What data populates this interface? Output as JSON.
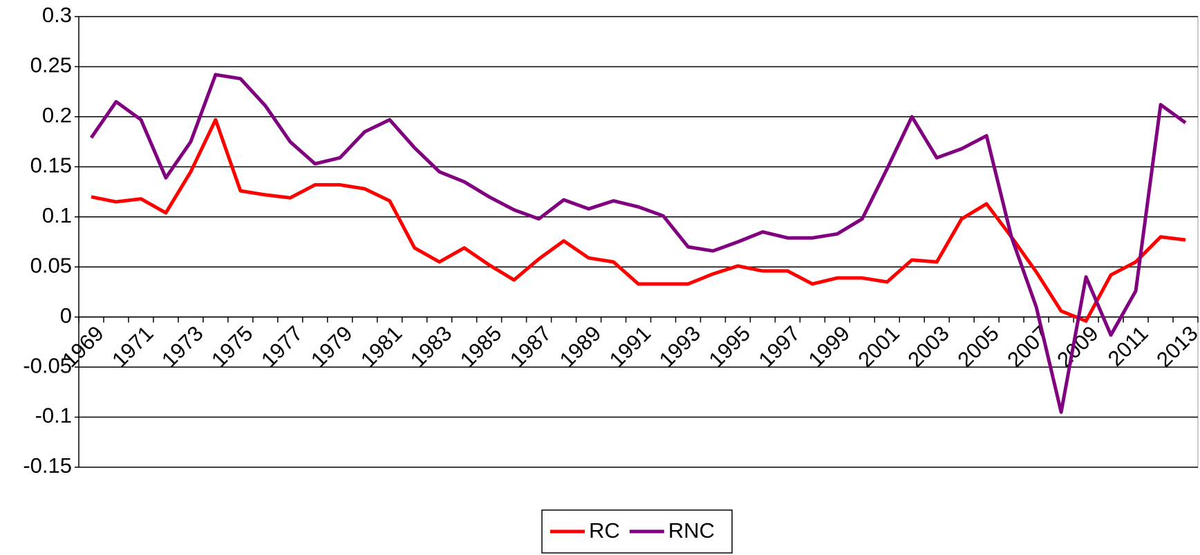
{
  "chart_data": {
    "type": "line",
    "categories": [
      "1969",
      null,
      "1971",
      null,
      "1973",
      null,
      "1975",
      null,
      "1977",
      null,
      "1979",
      null,
      "1981",
      null,
      "1983",
      null,
      "1985",
      null,
      "1987",
      null,
      "1989",
      null,
      "1991",
      null,
      "1993",
      null,
      "1995",
      null,
      "1997",
      null,
      "1999",
      null,
      "2001",
      null,
      "2003",
      null,
      "2005",
      null,
      "2007",
      null,
      "2009",
      null,
      "2011",
      null,
      "2013"
    ],
    "series": [
      {
        "name": "RC",
        "color": "#ff0000",
        "values": [
          0.12,
          0.115,
          0.118,
          0.104,
          0.145,
          0.197,
          0.126,
          0.122,
          0.119,
          0.132,
          0.132,
          0.128,
          0.116,
          0.069,
          0.055,
          0.069,
          0.052,
          0.037,
          0.058,
          0.076,
          0.059,
          0.055,
          0.033,
          0.033,
          0.033,
          0.043,
          0.051,
          0.046,
          0.046,
          0.033,
          0.039,
          0.039,
          0.035,
          0.057,
          0.055,
          0.098,
          0.113,
          0.08,
          0.045,
          0.006,
          -0.004,
          0.042,
          0.055,
          0.08,
          0.077
        ]
      },
      {
        "name": "RNC",
        "color": "#800080",
        "values": [
          0.179,
          0.215,
          0.197,
          0.139,
          0.175,
          0.242,
          0.238,
          0.211,
          0.175,
          0.153,
          0.159,
          0.185,
          0.197,
          0.169,
          0.145,
          0.135,
          0.12,
          0.107,
          0.098,
          0.117,
          0.108,
          0.116,
          0.11,
          0.101,
          0.07,
          0.066,
          0.075,
          0.085,
          0.079,
          0.079,
          0.083,
          0.098,
          0.148,
          0.2,
          0.159,
          0.168,
          0.181,
          0.08,
          0.01,
          -0.095,
          0.04,
          -0.018,
          0.026,
          0.212,
          0.194
        ]
      }
    ],
    "ylim": [
      -0.15,
      0.3
    ],
    "yticks": [
      -0.15,
      -0.1,
      -0.05,
      0,
      0.05,
      0.1,
      0.15,
      0.2,
      0.25,
      0.3
    ],
    "grid": true,
    "legend": "bottom"
  }
}
